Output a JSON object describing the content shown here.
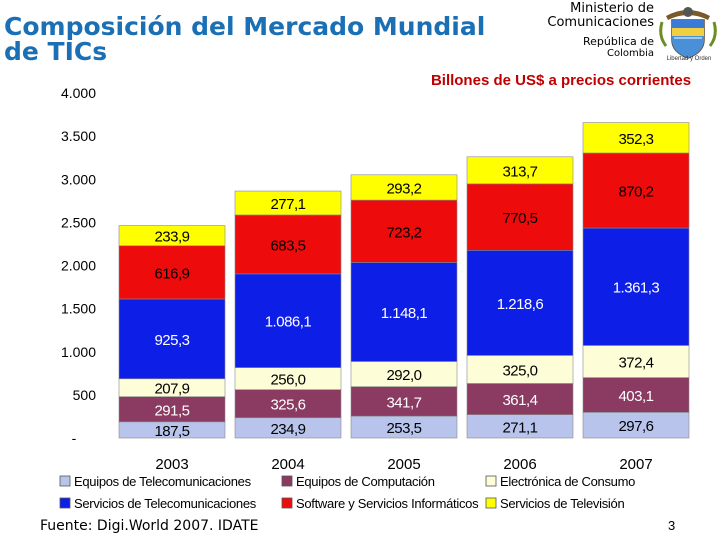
{
  "header": {
    "title": "Composición del Mercado Mundial de TICs",
    "ministry_line1": "Ministerio de",
    "ministry_line2": "Comunicaciones",
    "republic_line1": "República de",
    "republic_line2": "Colombia",
    "crest_motto": "Libertad y Orden"
  },
  "footer": {
    "source": "Fuente: Digi.World 2007. IDATE",
    "page_number": "3"
  },
  "colors": {
    "title": "#1a6fb5",
    "subtitle": "#c00000",
    "equipos_telecom": "#b8c4ec",
    "equipos_computacion": "#8b3a62",
    "electronica_consumo": "#fdfdd8",
    "servicios_telecom": "#0d1ee6",
    "software": "#ee0b0b",
    "television": "#ffff00"
  },
  "chart_data": {
    "type": "bar",
    "stacked": true,
    "title": "Billones de US$ a precios corrientes",
    "xlabel": "",
    "ylabel": "",
    "categories": [
      "2003",
      "2004",
      "2005",
      "2006",
      "2007"
    ],
    "ylim": [
      0,
      4000
    ],
    "yticks": [
      0,
      500,
      1000,
      1500,
      2000,
      2500,
      3000,
      3500,
      4000
    ],
    "ytick_labels": [
      "-",
      "500",
      "1.000",
      "1.500",
      "2.000",
      "2.500",
      "3.000",
      "3.500",
      "4.000"
    ],
    "legend_position": "bottom",
    "series": [
      {
        "name": "Equipos de Telecomunicaciones",
        "color": "#b8c4ec",
        "values": [
          187.5,
          234.9,
          253.5,
          271.1,
          297.6
        ],
        "labels": [
          "187,5",
          "234,9",
          "253,5",
          "271,1",
          "297,6"
        ]
      },
      {
        "name": "Equipos de Computación",
        "color": "#8b3a62",
        "values": [
          291.5,
          325.6,
          341.7,
          361.4,
          403.1
        ],
        "labels": [
          "291,5",
          "325,6",
          "341,7",
          "361,4",
          "403,1"
        ]
      },
      {
        "name": "Electrónica de Consumo",
        "color": "#fdfdd8",
        "values": [
          207.9,
          256.0,
          292.0,
          325.0,
          372.4
        ],
        "labels": [
          "207,9",
          "256,0",
          "292,0",
          "325,0",
          "372,4"
        ]
      },
      {
        "name": "Servicios de Telecomunicaciones",
        "color": "#0d1ee6",
        "values": [
          925.3,
          1086.1,
          1148.1,
          1218.6,
          1361.3
        ],
        "labels": [
          "925,3",
          "1.086,1",
          "1.148,1",
          "1.218,6",
          "1.361,3"
        ]
      },
      {
        "name": "Software y Servicios Informáticos",
        "color": "#ee0b0b",
        "values": [
          616.9,
          683.5,
          723.2,
          770.5,
          870.2
        ],
        "labels": [
          "616,9",
          "683,5",
          "723,2",
          "770,5",
          "870,2"
        ]
      },
      {
        "name": "Servicios de Televisión",
        "color": "#ffff00",
        "values": [
          233.9,
          277.1,
          293.2,
          313.7,
          352.3
        ],
        "labels": [
          "233,9",
          "277,1",
          "293,2",
          "313,7",
          "352,3"
        ]
      }
    ]
  }
}
